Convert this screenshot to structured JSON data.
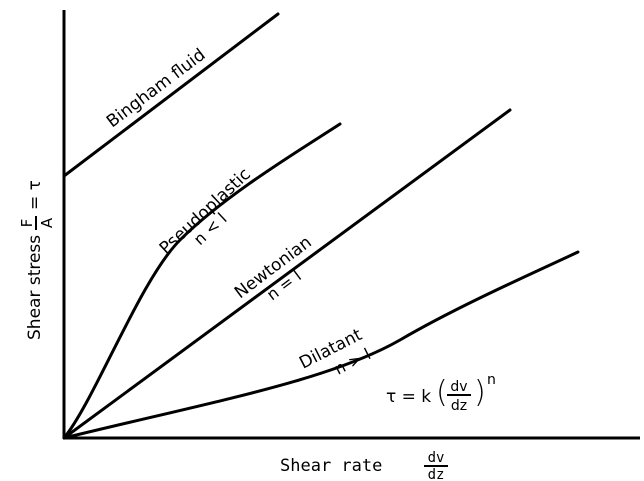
{
  "figure": {
    "colors": {
      "ink": "#000000",
      "background": "#ffffff"
    },
    "curves": [
      {
        "id": "bingham",
        "label": "Bingham fluid",
        "condition": ""
      },
      {
        "id": "pseudoplastic",
        "label": "Pseudoplastic",
        "condition": "n < l"
      },
      {
        "id": "newtonian",
        "label": "Newtonian",
        "condition": "n = l"
      },
      {
        "id": "dilatant",
        "label": "Dilatant",
        "condition": "n > l"
      }
    ],
    "y_axis": {
      "prefix": "Shear stress",
      "frac_num": "F",
      "frac_den": "A",
      "suffix": "= τ"
    },
    "x_axis": {
      "prefix": "Shear rate",
      "frac_num": "dv",
      "frac_den": "dz"
    },
    "equation": {
      "lhs": "τ = k",
      "frac_num": "dv",
      "frac_den": "dz",
      "exponent": "n"
    }
  }
}
